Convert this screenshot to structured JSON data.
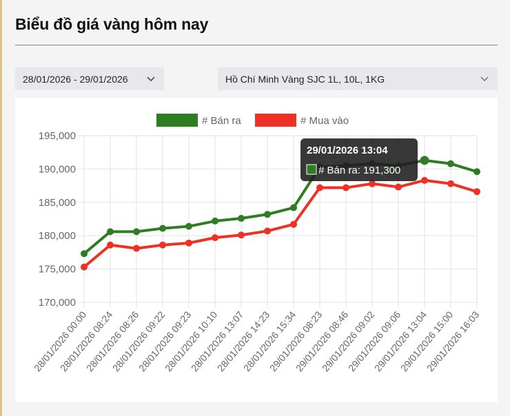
{
  "header": {
    "title": "Biểu đồ giá vàng hôm nay"
  },
  "filters": {
    "date_range": "28/01/2026 - 29/01/2026",
    "product": "Hồ Chí Minh Vàng SJC 1L, 10L, 1KG"
  },
  "tooltip": {
    "title": "29/01/2026 13:04",
    "label": "# Bán ra: 191,300",
    "point_index": 13
  },
  "colors": {
    "ban_ra": "#2e7d22",
    "mua_vao": "#ee3124"
  },
  "chart_data": {
    "type": "line",
    "title": "",
    "xlabel": "",
    "ylabel": "",
    "ylim": [
      170000,
      195000
    ],
    "yticks": [
      "195,000",
      "190,000",
      "185,000",
      "180,000",
      "175,000",
      "170,000"
    ],
    "grid": true,
    "legend_position": "top",
    "categories": [
      "28/01/2026 00:00",
      "28/01/2026 08:24",
      "28/01/2026 08:26",
      "28/01/2026 09:22",
      "28/01/2026 09:23",
      "28/01/2026 10:10",
      "28/01/2026 13:07",
      "28/01/2026 14:23",
      "28/01/2026 15:34",
      "29/01/2026 08:23",
      "29/01/2026 08:46",
      "29/01/2026 09:02",
      "29/01/2026 09:06",
      "29/01/2026 13:04",
      "29/01/2026 15:00",
      "29/01/2026 16:03"
    ],
    "series": [
      {
        "name": "# Bán ra",
        "color": "#2e7d22",
        "values": [
          177300,
          180600,
          180600,
          181100,
          181400,
          182200,
          182600,
          183200,
          184200,
          190300,
          190500,
          190800,
          190500,
          191300,
          190800,
          189600
        ]
      },
      {
        "name": "# Mua vào",
        "color": "#ee3124",
        "values": [
          175300,
          178600,
          178100,
          178600,
          178900,
          179700,
          180100,
          180700,
          181700,
          187200,
          187200,
          187800,
          187300,
          188300,
          187800,
          186600
        ]
      }
    ]
  }
}
